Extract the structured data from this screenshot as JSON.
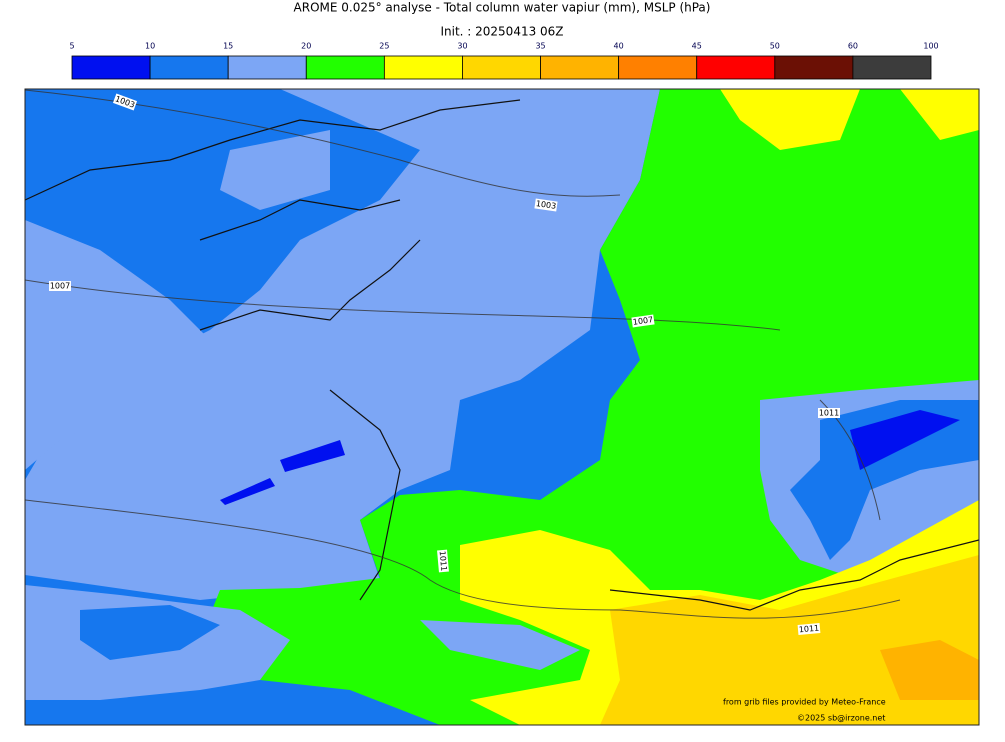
{
  "header": {
    "title": "AROME 0.025° analyse - Total column water vapiur (mm), MSLP (hPa)",
    "subtitle": "Init. : 20250413 06Z"
  },
  "colorbar": {
    "ticks": [
      5,
      10,
      15,
      20,
      25,
      30,
      35,
      40,
      45,
      50,
      60,
      100
    ],
    "colors": [
      "#0010f0",
      "#1677ee",
      "#7ca6f5",
      "#22ff00",
      "#ffff00",
      "#ffd700",
      "#ffb300",
      "#ff8000",
      "#ff0000",
      "#6b1005",
      "#3c3c3c"
    ]
  },
  "map": {
    "isobar_labels": [
      "1003",
      "1003",
      "1007",
      "1007",
      "1011",
      "1011",
      "1011"
    ]
  },
  "credits": {
    "source": "from grib files provided by Meteo-France",
    "copyright": "©2025 sb@irzone.net"
  }
}
